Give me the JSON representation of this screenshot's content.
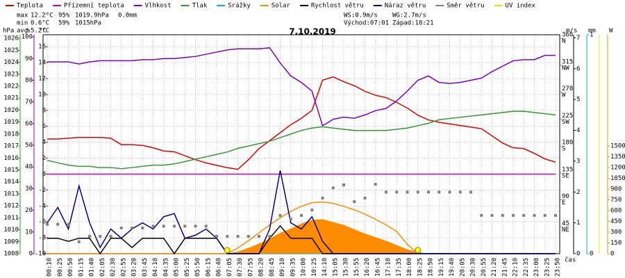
{
  "chart_data": {
    "type": "line",
    "title": "7.10.2019",
    "x_label": "čas",
    "categories": [
      "00:10",
      "00:25",
      "00:50",
      "01:15",
      "01:40",
      "02:05",
      "02:30",
      "02:55",
      "03:20",
      "03:45",
      "04:10",
      "04:35",
      "05:00",
      "05:25",
      "05:50",
      "06:15",
      "06:40",
      "07:05",
      "07:30",
      "07:55",
      "08:20",
      "08:45",
      "09:10",
      "09:35",
      "10:00",
      "10:25",
      "14:10",
      "15:05",
      "15:30",
      "15:55",
      "16:20",
      "16:45",
      "17:10",
      "17:35",
      "18:00",
      "18:25",
      "18:50",
      "19:15",
      "19:40",
      "20:05",
      "20:30",
      "20:55",
      "21:20",
      "21:45",
      "22:10",
      "22:35",
      "23:00",
      "23:25",
      "23:50"
    ],
    "grid": true,
    "stats": [
      {
        "label": "max",
        "texts": [
          {
            "text": "12.2°C",
            "color": "#e00000"
          },
          {
            "text": "95%",
            "color": "#8000c0"
          },
          {
            "text": "1019.9hPa",
            "color": "#339933"
          },
          {
            "text": "0.0mm",
            "color": "#00b0e0"
          }
        ]
      },
      {
        "label": "min",
        "texts": [
          {
            "text": "0.6°C",
            "color": "#e00000"
          },
          {
            "text": "59%",
            "color": "#8000c0"
          },
          {
            "text": "1015hPa",
            "color": "#339933"
          }
        ]
      },
      {
        "label": "avg",
        "texts": [
          {
            "text": "5.2°C",
            "color": "#000000"
          }
        ]
      }
    ],
    "info": [
      [
        "WS:0.9m/s",
        "WG:2.7m/s"
      ],
      [
        "Východ:07:01",
        "Západ:18:21"
      ]
    ],
    "axes": [
      {
        "label": "hPa",
        "color": "#339933",
        "ylim": [
          1008,
          1026.3
        ],
        "yticks": [
          1008,
          1009,
          1010,
          1011,
          1012,
          1013,
          1014,
          1015,
          1016,
          1017,
          1018,
          1019,
          1020,
          1021,
          1022,
          1023,
          1024,
          1025,
          1026
        ]
      },
      {
        "label": "%",
        "color": "#8000c0",
        "ylim": [
          0,
          101
        ],
        "yticks": [
          0,
          10,
          20,
          30,
          40,
          50,
          60,
          70,
          80,
          90,
          100
        ]
      },
      {
        "label": "°C",
        "color": "#e00000",
        "ylim": [
          -10,
          17.5
        ],
        "yticks": [
          -10,
          -8,
          -6,
          -4,
          -2,
          0,
          2,
          4,
          6,
          8,
          10,
          12,
          14,
          16
        ]
      },
      {
        "color": "#808080",
        "ylim": [
          0,
          366
        ],
        "yticks": [
          45,
          90,
          135,
          180,
          225,
          270,
          315,
          360
        ],
        "compass": [
          "NE",
          "E",
          "SE",
          "S",
          "SW",
          "W",
          "NW",
          "N"
        ]
      },
      {
        "label": "m/s",
        "color": "#000000",
        "ylim": [
          0,
          7.1
        ],
        "yticks": [
          0,
          1,
          2,
          3,
          4,
          5,
          6,
          7
        ]
      },
      {
        "label": "mm",
        "color": "#00b0e0",
        "ylim": [
          0,
          1
        ],
        "yticks": [
          0,
          1
        ]
      },
      {
        "label": "W",
        "color": "#ff8c00",
        "ylim": [
          0,
          3048
        ],
        "yticks": [
          0,
          150,
          300,
          450,
          600,
          750,
          900,
          1050,
          1200,
          1350,
          1500
        ]
      }
    ],
    "series": [
      {
        "name": "Teplota",
        "color": "#e00000",
        "axis": 2,
        "kind": "line",
        "values": [
          4.4,
          4.4,
          4.5,
          4.6,
          4.6,
          4.6,
          4.5,
          3.7,
          3.7,
          3.6,
          3.3,
          2.9,
          2.8,
          2.3,
          1.8,
          1.4,
          1.1,
          0.8,
          0.6,
          1.8,
          3.2,
          4.2,
          5.2,
          6.2,
          7.0,
          8.0,
          11.8,
          12.2,
          11.6,
          11.1,
          10.4,
          9.9,
          9.6,
          9.0,
          8.3,
          7.4,
          6.8,
          6.5,
          6.3,
          6.1,
          5.9,
          5.7,
          4.8,
          3.9,
          3.3,
          3.2,
          2.6,
          1.9,
          1.5
        ]
      },
      {
        "name": "Přízemní teplota",
        "color": "#c000c0",
        "axis": 2,
        "kind": "line",
        "values": [
          0,
          0,
          0,
          0,
          0,
          0,
          0,
          0,
          0,
          0,
          0,
          0,
          0,
          0,
          0,
          0,
          0,
          0,
          0,
          0,
          0,
          0,
          0,
          0,
          0,
          0,
          0,
          0,
          0,
          0,
          0,
          0,
          0,
          0,
          0,
          0,
          0,
          0,
          0,
          0,
          0,
          0,
          0,
          0,
          0,
          0,
          0,
          0,
          0
        ]
      },
      {
        "name": "Vlhkost",
        "color": "#8000c0",
        "axis": 1,
        "kind": "line",
        "values": [
          88.5,
          88.5,
          88.5,
          87.5,
          88.5,
          89,
          89,
          89,
          89,
          89.5,
          89.5,
          90,
          90,
          90.5,
          91,
          92,
          93,
          94,
          94.5,
          94.5,
          94.5,
          95,
          88,
          82,
          79,
          75,
          59,
          62,
          63,
          62.5,
          64,
          66,
          67,
          70.5,
          75,
          80,
          82,
          79,
          78.5,
          79,
          80,
          81,
          84,
          86.5,
          89,
          89.5,
          89.5,
          91.5,
          91.5
        ]
      },
      {
        "name": "Tlak",
        "color": "#339933",
        "axis": 0,
        "kind": "line",
        "values": [
          1015.8,
          1015.6,
          1015.4,
          1015.3,
          1015.3,
          1015.2,
          1015.2,
          1015.1,
          1015.2,
          1015.3,
          1015.4,
          1015.4,
          1015.5,
          1015.7,
          1015.9,
          1016.1,
          1016.3,
          1016.5,
          1016.8,
          1017.0,
          1017.2,
          1017.4,
          1017.7,
          1018.0,
          1018.3,
          1018.5,
          1018.6,
          1018.5,
          1018.4,
          1018.3,
          1018.3,
          1018.3,
          1018.3,
          1018.4,
          1018.5,
          1018.7,
          1018.9,
          1019.2,
          1019.3,
          1019.4,
          1019.5,
          1019.6,
          1019.7,
          1019.8,
          1019.9,
          1019.9,
          1019.8,
          1019.7,
          1019.6
        ]
      },
      {
        "name": "Srážky",
        "color": "#00b0e0",
        "axis": 5,
        "kind": "line",
        "values": [
          0,
          0,
          0,
          0,
          0,
          0,
          0,
          0,
          0,
          0,
          0,
          0,
          0,
          0,
          0,
          0,
          0,
          0,
          0,
          0,
          0,
          0,
          0,
          0,
          0,
          0,
          0,
          0,
          0,
          0,
          0,
          0,
          0,
          0,
          0,
          0,
          0,
          0,
          0,
          0,
          0,
          0,
          0,
          0,
          0,
          0,
          0,
          0,
          0
        ]
      },
      {
        "name": "Solar",
        "color": "#ff8c00",
        "axis": 6,
        "kind": "area",
        "values": [
          0,
          0,
          0,
          0,
          0,
          0,
          0,
          0,
          0,
          0,
          0,
          0,
          0,
          0,
          0,
          0,
          0,
          0,
          30,
          80,
          140,
          210,
          290,
          350,
          420,
          470,
          480,
          440,
          400,
          340,
          280,
          230,
          180,
          120,
          60,
          20,
          0,
          0,
          0,
          0,
          0,
          0,
          0,
          0,
          0,
          0,
          0,
          0,
          0
        ]
      },
      {
        "color": "#ff8c00",
        "axis": 6,
        "kind": "line",
        "values": [
          0,
          0,
          0,
          0,
          0,
          0,
          0,
          0,
          0,
          0,
          0,
          0,
          0,
          0,
          0,
          0,
          0,
          0,
          80,
          180,
          290,
          400,
          500,
          590,
          660,
          710,
          720,
          700,
          660,
          610,
          550,
          480,
          400,
          310,
          130,
          0,
          0,
          0,
          0,
          0,
          0,
          0,
          0,
          0,
          0,
          0,
          0,
          0,
          0
        ]
      },
      {
        "name": "Rychlost větru",
        "color": "#000000",
        "axis": 4,
        "kind": "line",
        "values": [
          0.5,
          0.5,
          0.4,
          0.5,
          0.5,
          0,
          0.5,
          0.5,
          0.2,
          0.5,
          0.5,
          0.5,
          0,
          0.5,
          0.5,
          0.5,
          0.5,
          0,
          0,
          0,
          0,
          0.5,
          0.9,
          0.5,
          0.5,
          0.5,
          0,
          0,
          0,
          0,
          0,
          0,
          0,
          0,
          0,
          0,
          0,
          0,
          0,
          0,
          0,
          0,
          0,
          0,
          0,
          0,
          0,
          0,
          0
        ]
      },
      {
        "name": "Náraz větru",
        "color": "#000080",
        "axis": 4,
        "kind": "line",
        "values": [
          1.0,
          1.5,
          0.8,
          2.2,
          1.0,
          0.2,
          0.8,
          0.5,
          0.8,
          1.0,
          0.8,
          1.2,
          1.3,
          0.5,
          0.6,
          0.8,
          0.5,
          0,
          0,
          0,
          0,
          0.8,
          2.7,
          1.0,
          0.8,
          1.2,
          0.4,
          0,
          0,
          0,
          0,
          0,
          0,
          0,
          0,
          0,
          0,
          0,
          0,
          0,
          0,
          0,
          0,
          0,
          0,
          0,
          0,
          0,
          0
        ]
      },
      {
        "name": "Směr větru",
        "color": "#808080",
        "axis": 3,
        "kind": "points",
        "values": [
          49,
          49,
          49,
          20,
          29,
          29,
          29,
          43,
          43,
          43,
          46,
          46,
          46,
          46,
          46,
          46,
          29,
          29,
          29,
          29,
          29,
          29,
          64,
          58,
          64,
          73,
          93,
          110,
          115,
          87,
          93,
          116,
          103,
          103,
          103,
          103,
          103,
          103,
          103,
          103,
          103,
          64,
          64,
          64,
          64,
          64,
          64,
          64,
          64
        ]
      },
      {
        "name": "UV index",
        "color": "#e8e800",
        "kind": "none"
      }
    ]
  }
}
